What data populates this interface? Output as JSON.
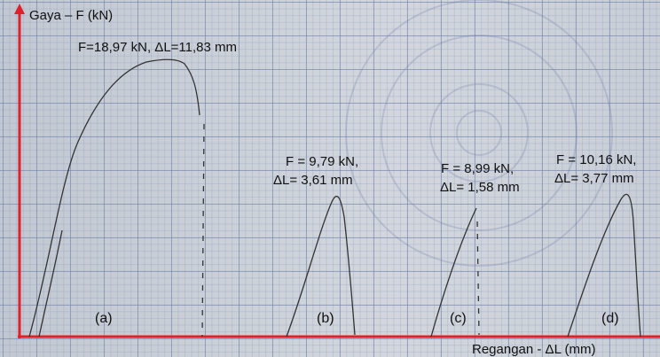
{
  "y_axis_label": "Gaya – F (kN)",
  "x_axis_label": "Regangan - ΔL (mm)",
  "specimens": [
    {
      "label": "(a)",
      "annotation": [
        "F=18,97 kN, ΔL=11,83 mm"
      ]
    },
    {
      "label": "(b)",
      "annotation": [
        "F  = 9,79 kN,",
        "ΔL= 3,61  mm"
      ]
    },
    {
      "label": "(c)",
      "annotation": [
        "F  = 8,99  kN,",
        "ΔL= 1,58  mm"
      ]
    },
    {
      "label": "(d)",
      "annotation": [
        "F  = 10,16  kN,",
        "ΔL= 3,77   mm"
      ]
    }
  ]
}
